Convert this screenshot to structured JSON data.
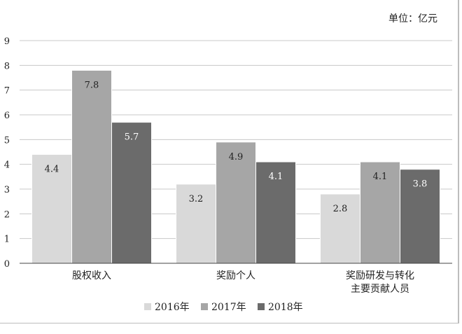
{
  "chart_data": {
    "type": "bar",
    "unit_label": "单位：亿元",
    "categories": [
      [
        "股权收入"
      ],
      [
        "奖励个人"
      ],
      [
        "奖励研发与转化",
        "主要贡献人员"
      ]
    ],
    "series": [
      {
        "name": "2016年",
        "values": [
          4.4,
          3.2,
          2.8
        ],
        "color": "#d9d9d9",
        "label_color": "#222222"
      },
      {
        "name": "2017年",
        "values": [
          7.8,
          4.9,
          4.1
        ],
        "color": "#a6a6a6",
        "label_color": "#222222"
      },
      {
        "name": "2018年",
        "values": [
          5.7,
          4.1,
          3.8
        ],
        "color": "#6b6b6b",
        "label_color": "#ffffff"
      }
    ],
    "ylim": [
      0,
      9
    ],
    "yticks": [
      0,
      1,
      2,
      3,
      4,
      5,
      6,
      7,
      8,
      9
    ],
    "grid": true,
    "legend_position": "bottom-center"
  }
}
